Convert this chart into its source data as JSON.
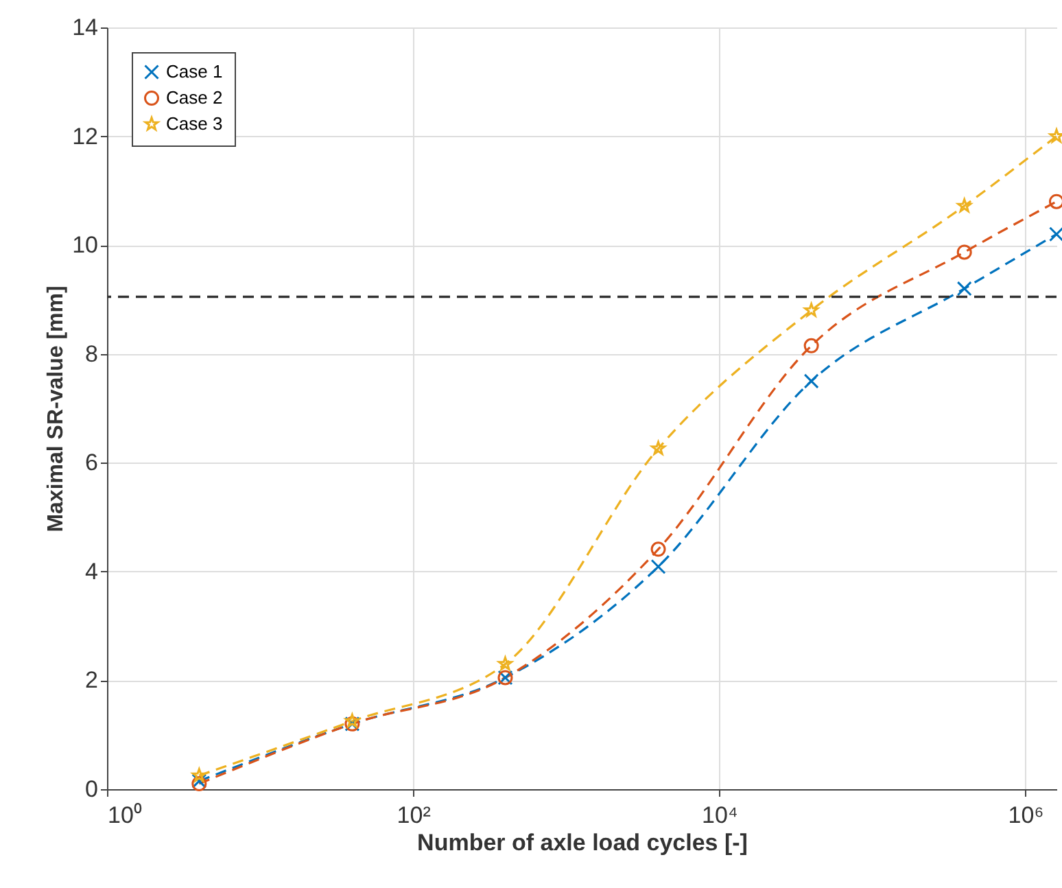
{
  "chart_data": {
    "type": "line",
    "xlabel": "Number of axle load cycles [-]",
    "ylabel": "Maximal SR-value [mm]",
    "log": "x",
    "xlim": [
      1,
      1600000
    ],
    "xticks": [
      {
        "value": 1,
        "label": "10⁰"
      },
      {
        "value": 100,
        "label": "10²"
      },
      {
        "value": 10000,
        "label": "10⁴"
      },
      {
        "value": 1000000,
        "label": "10⁶"
      }
    ],
    "ylim": [
      0,
      14
    ],
    "yticks": [
      0,
      2,
      4,
      6,
      8,
      10,
      12,
      14
    ],
    "grid": true,
    "legend": "top left",
    "line_style": "dashed",
    "x": [
      4,
      40,
      400,
      4000,
      40000,
      400000,
      1600000
    ],
    "series": [
      {
        "name": "Case 1",
        "color": "#0072bd",
        "marker": "cross",
        "values": [
          0.15,
          1.2,
          2.05,
          4.09,
          7.5,
          9.2,
          10.2
        ]
      },
      {
        "name": "Case 2",
        "color": "#d95319",
        "marker": "circle",
        "values": [
          0.1,
          1.2,
          2.05,
          4.41,
          8.15,
          9.87,
          10.8
        ]
      },
      {
        "name": "Case 3",
        "color": "#edb120",
        "marker": "star",
        "values": [
          0.25,
          1.25,
          2.3,
          6.26,
          8.8,
          10.72,
          12.0
        ]
      }
    ],
    "ref_lines": [
      {
        "axis": "y",
        "value": 9.05,
        "color": "#333333",
        "line_style": "dashed"
      }
    ]
  }
}
